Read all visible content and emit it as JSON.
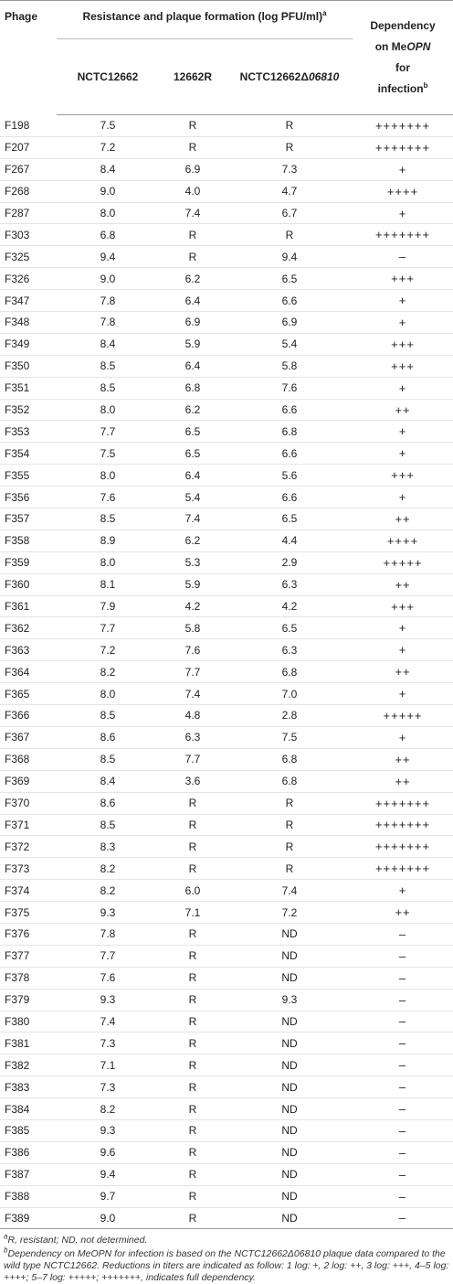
{
  "header": {
    "phage": "Phage",
    "group": "Resistance and plaque formation (log PFU/ml)",
    "group_sup": "a",
    "dependency": [
      "Dependency",
      "on Me",
      "OPN",
      "for",
      "infection"
    ],
    "dependency_sup": "b",
    "columns": [
      "NCTC12662",
      "12662R"
    ],
    "delta_col": [
      "NCTC12662Δ",
      "06810"
    ]
  },
  "rows": [
    [
      "F198",
      "7.5",
      "R",
      "R",
      "+++++++"
    ],
    [
      "F207",
      "7.2",
      "R",
      "R",
      "+++++++"
    ],
    [
      "F267",
      "8.4",
      "6.9",
      "7.3",
      "+"
    ],
    [
      "F268",
      "9.0",
      "4.0",
      "4.7",
      "++++"
    ],
    [
      "F287",
      "8.0",
      "7.4",
      "6.7",
      "+"
    ],
    [
      "F303",
      "6.8",
      "R",
      "R",
      "+++++++"
    ],
    [
      "F325",
      "9.4",
      "R",
      "9.4",
      "–"
    ],
    [
      "F326",
      "9.0",
      "6.2",
      "6.5",
      "+++"
    ],
    [
      "F347",
      "7.8",
      "6.4",
      "6.6",
      "+"
    ],
    [
      "F348",
      "7.8",
      "6.9",
      "6.9",
      "+"
    ],
    [
      "F349",
      "8.4",
      "5.9",
      "5.4",
      "+++"
    ],
    [
      "F350",
      "8.5",
      "6.4",
      "5.8",
      "+++"
    ],
    [
      "F351",
      "8.5",
      "6.8",
      "7.6",
      "+"
    ],
    [
      "F352",
      "8.0",
      "6.2",
      "6.6",
      "++"
    ],
    [
      "F353",
      "7.7",
      "6.5",
      "6.8",
      "+"
    ],
    [
      "F354",
      "7.5",
      "6.5",
      "6.6",
      "+"
    ],
    [
      "F355",
      "8.0",
      "6.4",
      "5.6",
      "+++"
    ],
    [
      "F356",
      "7.6",
      "5.4",
      "6.6",
      "+"
    ],
    [
      "F357",
      "8.5",
      "7.4",
      "6.5",
      "++"
    ],
    [
      "F358",
      "8.9",
      "6.2",
      "4.4",
      "++++"
    ],
    [
      "F359",
      "8.0",
      "5.3",
      "2.9",
      "+++++"
    ],
    [
      "F360",
      "8.1",
      "5.9",
      "6.3",
      "++"
    ],
    [
      "F361",
      "7.9",
      "4.2",
      "4.2",
      "+++"
    ],
    [
      "F362",
      "7.7",
      "5.8",
      "6.5",
      "+"
    ],
    [
      "F363",
      "7.2",
      "7.6",
      "6.3",
      "+"
    ],
    [
      "F364",
      "8.2",
      "7.7",
      "6.8",
      "++"
    ],
    [
      "F365",
      "8.0",
      "7.4",
      "7.0",
      "+"
    ],
    [
      "F366",
      "8.5",
      "4.8",
      "2.8",
      "+++++"
    ],
    [
      "F367",
      "8.6",
      "6.3",
      "7.5",
      "+"
    ],
    [
      "F368",
      "8.5",
      "7.7",
      "6.8",
      "++"
    ],
    [
      "F369",
      "8.4",
      "3.6",
      "6.8",
      "++"
    ],
    [
      "F370",
      "8.6",
      "R",
      "R",
      "+++++++"
    ],
    [
      "F371",
      "8.5",
      "R",
      "R",
      "+++++++"
    ],
    [
      "F372",
      "8.3",
      "R",
      "R",
      "+++++++"
    ],
    [
      "F373",
      "8.2",
      "R",
      "R",
      "+++++++"
    ],
    [
      "F374",
      "8.2",
      "6.0",
      "7.4",
      "+"
    ],
    [
      "F375",
      "9.3",
      "7.1",
      "7.2",
      "++"
    ],
    [
      "F376",
      "7.8",
      "R",
      "ND",
      "–"
    ],
    [
      "F377",
      "7.7",
      "R",
      "ND",
      "–"
    ],
    [
      "F378",
      "7.6",
      "R",
      "ND",
      "–"
    ],
    [
      "F379",
      "9.3",
      "R",
      "9.3",
      "–"
    ],
    [
      "F380",
      "7.4",
      "R",
      "ND",
      "–"
    ],
    [
      "F381",
      "7.3",
      "R",
      "ND",
      "–"
    ],
    [
      "F382",
      "7.1",
      "R",
      "ND",
      "–"
    ],
    [
      "F383",
      "7.3",
      "R",
      "ND",
      "–"
    ],
    [
      "F384",
      "8.2",
      "R",
      "ND",
      "–"
    ],
    [
      "F385",
      "9.3",
      "R",
      "ND",
      "–"
    ],
    [
      "F386",
      "9.6",
      "R",
      "ND",
      "–"
    ],
    [
      "F387",
      "9.4",
      "R",
      "ND",
      "–"
    ],
    [
      "F388",
      "9.7",
      "R",
      "ND",
      "–"
    ],
    [
      "F389",
      "9.0",
      "R",
      "ND",
      "–"
    ]
  ],
  "footnotes": [
    {
      "marker": "a",
      "text": "R, resistant; ND, not determined."
    },
    {
      "marker": "b",
      "text": "Dependency on MeOPN for infection is based on the NCTC12662Δ06810 plaque data compared to the wild type NCTC12662. Reductions in titers are indicated as follow: 1 log: +, 2 log: ++, 3 log: +++, 4–5 log: ++++; 5–7 log: +++++; +++++++, indicates full dependency."
    }
  ]
}
